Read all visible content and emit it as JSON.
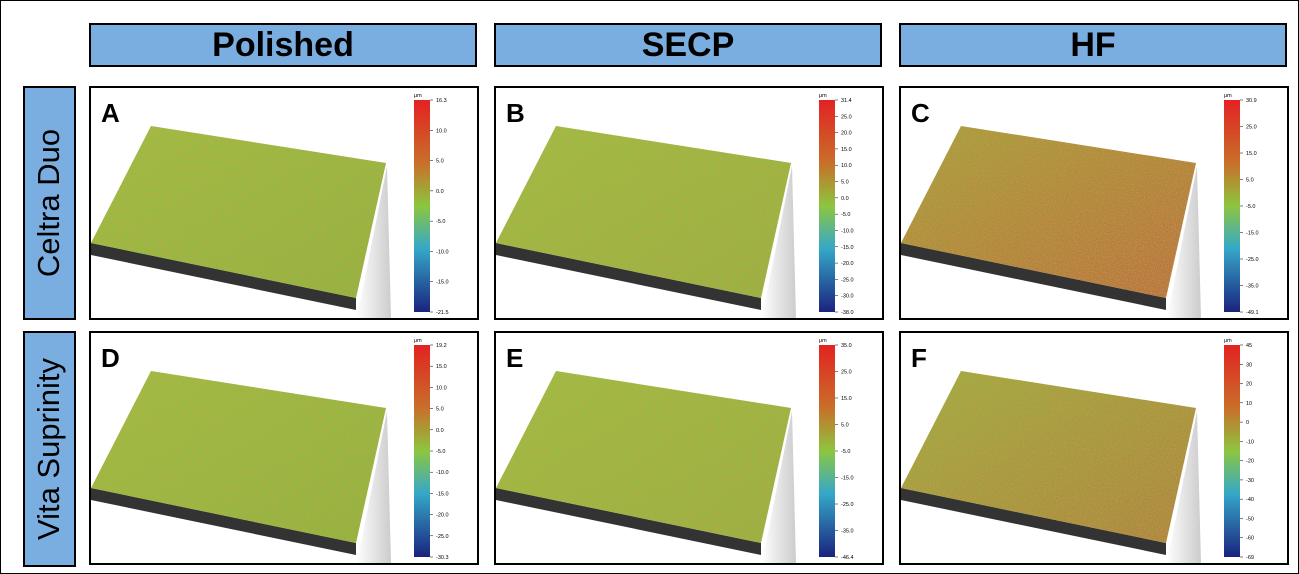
{
  "columns": [
    "Polished",
    "SECP",
    "HF"
  ],
  "rows": [
    "Celtra Duo",
    "Vita Suprinity"
  ],
  "panels": [
    {
      "letter": "A",
      "unit": "μm",
      "scale": [
        "16.3",
        "10.0",
        "5.0",
        "0.0",
        "-5.0",
        "-10.0",
        "-15.0",
        "-21.5"
      ]
    },
    {
      "letter": "B",
      "unit": "μm",
      "scale": [
        "31.4",
        "25.0",
        "20.0",
        "15.0",
        "10.0",
        "5.0",
        "0.0",
        "-5.0",
        "-10.0",
        "-15.0",
        "-20.0",
        "-25.0",
        "-30.0",
        "-38.0"
      ]
    },
    {
      "letter": "C",
      "unit": "μm",
      "scale": [
        "30.9",
        "25.0",
        "15.0",
        "5.0",
        "-5.0",
        "-15.0",
        "-25.0",
        "-35.0",
        "-49.1"
      ]
    },
    {
      "letter": "D",
      "unit": "μm",
      "scale": [
        "19.2",
        "15.0",
        "10.0",
        "5.0",
        "0.0",
        "-5.0",
        "-10.0",
        "-15.0",
        "-20.0",
        "-25.0",
        "-30.3"
      ]
    },
    {
      "letter": "E",
      "unit": "μm",
      "scale": [
        "35.0",
        "25.0",
        "15.0",
        "5.0",
        "-5.0",
        "-15.0",
        "-25.0",
        "-35.0",
        "-46.4"
      ]
    },
    {
      "letter": "F",
      "unit": "μm",
      "scale": [
        "45",
        "30",
        "20",
        "10",
        "0",
        "-10",
        "-20",
        "-30",
        "-40",
        "-50",
        "-60",
        "-69"
      ]
    }
  ]
}
